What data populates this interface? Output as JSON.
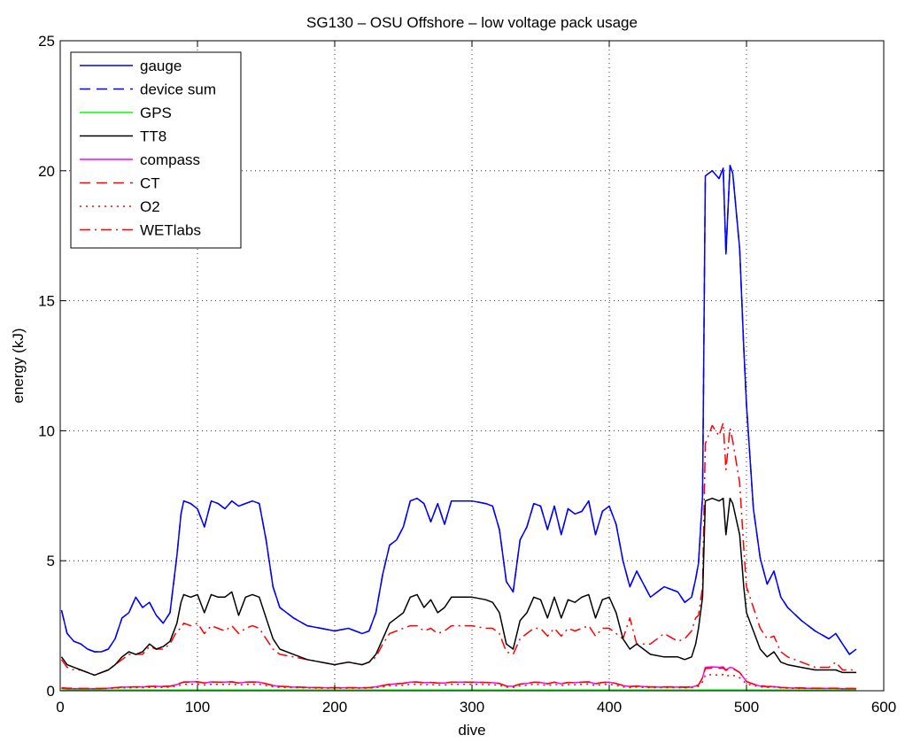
{
  "chart_data": {
    "type": "line",
    "title": "SG130 – OSU Offshore – low voltage pack usage",
    "xlabel": "dive",
    "ylabel": "energy (kJ)",
    "xlim": [
      0,
      600
    ],
    "ylim": [
      0,
      25
    ],
    "xticks": [
      0,
      100,
      200,
      300,
      400,
      500,
      600
    ],
    "yticks": [
      0,
      5,
      10,
      15,
      20,
      25
    ],
    "xtick_labels": [
      "0",
      "100",
      "200",
      "300",
      "400",
      "500",
      "600"
    ],
    "ytick_labels": [
      "0",
      "5",
      "10",
      "15",
      "20",
      "25"
    ],
    "grid": true,
    "legend_position": "top-left",
    "x": [
      1,
      5,
      10,
      15,
      20,
      25,
      30,
      35,
      40,
      45,
      50,
      55,
      60,
      65,
      70,
      75,
      80,
      85,
      88,
      90,
      95,
      100,
      105,
      110,
      115,
      120,
      125,
      130,
      135,
      140,
      145,
      150,
      155,
      160,
      170,
      180,
      190,
      200,
      210,
      220,
      225,
      230,
      235,
      240,
      245,
      250,
      255,
      260,
      265,
      270,
      275,
      280,
      285,
      290,
      300,
      310,
      315,
      320,
      325,
      330,
      335,
      340,
      345,
      350,
      355,
      360,
      365,
      370,
      375,
      380,
      385,
      390,
      395,
      400,
      405,
      410,
      415,
      420,
      430,
      440,
      450,
      455,
      460,
      463,
      465,
      468,
      470,
      475,
      480,
      483,
      485,
      488,
      490,
      495,
      498,
      500,
      505,
      510,
      515,
      520,
      525,
      530,
      540,
      550,
      560,
      565,
      570,
      575,
      580
    ],
    "series": [
      {
        "name": "gauge",
        "color": "#0000ff",
        "style": "solid",
        "values": [
          3.1,
          2.2,
          1.9,
          1.8,
          1.6,
          1.5,
          1.5,
          1.6,
          2.0,
          2.8,
          3.0,
          3.6,
          3.2,
          3.4,
          2.9,
          2.6,
          3.0,
          5.2,
          6.8,
          7.3,
          7.2,
          7.0,
          6.3,
          7.3,
          7.2,
          7.0,
          7.3,
          7.1,
          7.2,
          7.3,
          7.2,
          5.8,
          4.0,
          3.2,
          2.8,
          2.5,
          2.4,
          2.3,
          2.4,
          2.2,
          2.3,
          3.0,
          4.5,
          5.6,
          5.8,
          6.3,
          7.3,
          7.4,
          7.2,
          6.5,
          7.2,
          6.4,
          7.3,
          7.3,
          7.3,
          7.2,
          7.1,
          6.2,
          4.2,
          3.8,
          5.8,
          6.3,
          7.2,
          7.1,
          6.2,
          7.1,
          6.0,
          7.0,
          6.8,
          6.9,
          7.3,
          6.0,
          6.9,
          7.1,
          6.4,
          5.0,
          4.0,
          4.6,
          3.6,
          4.0,
          3.8,
          3.4,
          3.6,
          4.3,
          4.9,
          7.5,
          19.8,
          20.0,
          19.7,
          20.1,
          16.8,
          20.2,
          19.9,
          17.0,
          13.2,
          11.0,
          7.0,
          5.1,
          4.1,
          4.6,
          3.6,
          3.2,
          2.7,
          2.3,
          2.0,
          2.2,
          1.8,
          1.4,
          1.6
        ]
      },
      {
        "name": "device sum",
        "color": "#0000ff",
        "style": "dashed",
        "values": [
          3.1,
          2.2,
          1.9,
          1.8,
          1.6,
          1.5,
          1.5,
          1.6,
          2.0,
          2.8,
          3.0,
          3.6,
          3.2,
          3.4,
          2.9,
          2.6,
          3.0,
          5.2,
          6.8,
          7.3,
          7.2,
          7.0,
          6.3,
          7.3,
          7.2,
          7.0,
          7.3,
          7.1,
          7.2,
          7.3,
          7.2,
          5.8,
          4.0,
          3.2,
          2.8,
          2.5,
          2.4,
          2.3,
          2.4,
          2.2,
          2.3,
          3.0,
          4.5,
          5.6,
          5.8,
          6.3,
          7.3,
          7.4,
          7.2,
          6.5,
          7.2,
          6.4,
          7.3,
          7.3,
          7.3,
          7.2,
          7.1,
          6.2,
          4.2,
          3.8,
          5.8,
          6.3,
          7.2,
          7.1,
          6.2,
          7.1,
          6.0,
          7.0,
          6.8,
          6.9,
          7.3,
          6.0,
          6.9,
          7.1,
          6.4,
          5.0,
          4.0,
          4.6,
          3.6,
          4.0,
          3.8,
          3.4,
          3.6,
          4.3,
          4.9,
          7.5,
          19.8,
          20.0,
          19.7,
          20.1,
          16.8,
          20.2,
          19.9,
          17.0,
          13.2,
          11.0,
          7.0,
          5.1,
          4.1,
          4.6,
          3.6,
          3.2,
          2.7,
          2.3,
          2.0,
          2.2,
          1.8,
          1.4,
          1.6
        ]
      },
      {
        "name": "GPS",
        "color": "#00ff00",
        "style": "solid",
        "values": [
          0.03,
          0.03,
          0.03,
          0.03,
          0.03,
          0.03,
          0.03,
          0.03,
          0.03,
          0.03,
          0.03,
          0.03,
          0.03,
          0.03,
          0.03,
          0.03,
          0.03,
          0.03,
          0.03,
          0.03,
          0.03,
          0.03,
          0.03,
          0.03,
          0.03,
          0.03,
          0.03,
          0.03,
          0.03,
          0.03,
          0.03,
          0.03,
          0.03,
          0.03,
          0.03,
          0.03,
          0.03,
          0.03,
          0.03,
          0.03,
          0.03,
          0.03,
          0.03,
          0.03,
          0.03,
          0.03,
          0.03,
          0.03,
          0.03,
          0.03,
          0.03,
          0.03,
          0.03,
          0.03,
          0.03,
          0.03,
          0.03,
          0.03,
          0.03,
          0.03,
          0.03,
          0.03,
          0.03,
          0.03,
          0.03,
          0.03,
          0.03,
          0.03,
          0.03,
          0.03,
          0.03,
          0.03,
          0.03,
          0.03,
          0.03,
          0.03,
          0.03,
          0.03,
          0.03,
          0.03,
          0.03,
          0.03,
          0.03,
          0.03,
          0.03,
          0.03,
          0.03,
          0.03,
          0.03,
          0.03,
          0.03,
          0.03,
          0.03,
          0.03,
          0.03,
          0.03,
          0.03,
          0.03,
          0.03,
          0.03,
          0.03,
          0.03,
          0.03,
          0.03,
          0.03,
          0.03,
          0.03,
          0.03,
          0.03
        ]
      },
      {
        "name": "TT8",
        "color": "#000000",
        "style": "solid",
        "values": [
          1.3,
          1.0,
          0.9,
          0.8,
          0.7,
          0.6,
          0.7,
          0.8,
          1.0,
          1.3,
          1.5,
          1.4,
          1.5,
          1.8,
          1.6,
          1.7,
          1.9,
          2.6,
          3.4,
          3.7,
          3.6,
          3.7,
          3.0,
          3.7,
          3.6,
          3.6,
          3.8,
          2.9,
          3.6,
          3.7,
          3.6,
          2.8,
          2.0,
          1.6,
          1.4,
          1.2,
          1.1,
          1.0,
          1.1,
          1.0,
          1.1,
          1.4,
          2.0,
          2.6,
          2.8,
          3.0,
          3.6,
          3.7,
          3.2,
          3.5,
          3.0,
          3.2,
          3.6,
          3.6,
          3.6,
          3.5,
          3.4,
          3.0,
          1.8,
          1.6,
          2.7,
          3.0,
          3.6,
          3.5,
          2.8,
          3.6,
          2.8,
          3.5,
          3.4,
          3.6,
          3.7,
          2.8,
          3.5,
          3.6,
          3.0,
          2.0,
          1.6,
          1.8,
          1.4,
          1.3,
          1.3,
          1.2,
          1.3,
          1.8,
          2.4,
          3.6,
          7.3,
          7.4,
          7.3,
          7.4,
          6.0,
          7.4,
          7.2,
          6.0,
          4.0,
          3.0,
          2.3,
          1.6,
          1.3,
          1.5,
          1.1,
          1.0,
          0.9,
          0.8,
          0.8,
          0.8,
          0.7,
          0.7,
          0.7
        ]
      },
      {
        "name": "compass",
        "color": "#ff00ff",
        "style": "solid",
        "values": [
          0.1,
          0.08,
          0.08,
          0.08,
          0.08,
          0.08,
          0.08,
          0.1,
          0.12,
          0.14,
          0.14,
          0.15,
          0.15,
          0.16,
          0.17,
          0.16,
          0.17,
          0.24,
          0.3,
          0.34,
          0.34,
          0.35,
          0.3,
          0.34,
          0.33,
          0.33,
          0.35,
          0.3,
          0.33,
          0.34,
          0.33,
          0.27,
          0.2,
          0.17,
          0.14,
          0.13,
          0.12,
          0.11,
          0.12,
          0.11,
          0.12,
          0.15,
          0.2,
          0.25,
          0.27,
          0.29,
          0.33,
          0.34,
          0.31,
          0.32,
          0.3,
          0.3,
          0.33,
          0.33,
          0.33,
          0.32,
          0.31,
          0.28,
          0.18,
          0.17,
          0.26,
          0.28,
          0.33,
          0.32,
          0.27,
          0.33,
          0.27,
          0.32,
          0.31,
          0.33,
          0.34,
          0.27,
          0.32,
          0.33,
          0.28,
          0.2,
          0.16,
          0.18,
          0.14,
          0.14,
          0.14,
          0.13,
          0.14,
          0.18,
          0.22,
          0.5,
          0.9,
          0.92,
          0.9,
          0.92,
          0.8,
          0.9,
          0.88,
          0.7,
          0.5,
          0.35,
          0.25,
          0.18,
          0.15,
          0.16,
          0.12,
          0.11,
          0.1,
          0.09,
          0.09,
          0.09,
          0.08,
          0.08,
          0.08
        ]
      },
      {
        "name": "CT",
        "color": "#ff0000",
        "style": "dashed",
        "values": [
          0.12,
          0.1,
          0.1,
          0.09,
          0.09,
          0.09,
          0.09,
          0.1,
          0.12,
          0.14,
          0.14,
          0.15,
          0.15,
          0.17,
          0.17,
          0.17,
          0.18,
          0.24,
          0.3,
          0.33,
          0.33,
          0.34,
          0.3,
          0.33,
          0.33,
          0.32,
          0.34,
          0.3,
          0.33,
          0.33,
          0.33,
          0.27,
          0.2,
          0.17,
          0.15,
          0.13,
          0.12,
          0.12,
          0.12,
          0.12,
          0.12,
          0.15,
          0.2,
          0.25,
          0.27,
          0.28,
          0.33,
          0.33,
          0.31,
          0.32,
          0.3,
          0.3,
          0.33,
          0.33,
          0.33,
          0.32,
          0.31,
          0.28,
          0.18,
          0.17,
          0.26,
          0.28,
          0.33,
          0.32,
          0.27,
          0.33,
          0.27,
          0.32,
          0.31,
          0.33,
          0.34,
          0.27,
          0.32,
          0.33,
          0.28,
          0.2,
          0.16,
          0.18,
          0.15,
          0.15,
          0.15,
          0.14,
          0.15,
          0.18,
          0.22,
          0.5,
          0.85,
          0.88,
          0.86,
          0.88,
          0.78,
          0.87,
          0.85,
          0.7,
          0.5,
          0.36,
          0.26,
          0.2,
          0.16,
          0.17,
          0.13,
          0.12,
          0.11,
          0.1,
          0.1,
          0.1,
          0.09,
          0.09,
          0.09
        ]
      },
      {
        "name": "O2",
        "color": "#ff0000",
        "style": "dotted",
        "values": [
          0.1,
          0.08,
          0.08,
          0.08,
          0.08,
          0.08,
          0.08,
          0.09,
          0.1,
          0.11,
          0.11,
          0.12,
          0.12,
          0.13,
          0.13,
          0.13,
          0.14,
          0.18,
          0.22,
          0.25,
          0.25,
          0.26,
          0.22,
          0.25,
          0.25,
          0.24,
          0.26,
          0.22,
          0.25,
          0.25,
          0.25,
          0.2,
          0.15,
          0.13,
          0.12,
          0.11,
          0.1,
          0.1,
          0.1,
          0.1,
          0.1,
          0.12,
          0.15,
          0.19,
          0.2,
          0.21,
          0.25,
          0.25,
          0.23,
          0.24,
          0.22,
          0.22,
          0.25,
          0.25,
          0.25,
          0.24,
          0.23,
          0.21,
          0.14,
          0.13,
          0.19,
          0.21,
          0.25,
          0.24,
          0.2,
          0.25,
          0.2,
          0.24,
          0.23,
          0.25,
          0.26,
          0.2,
          0.24,
          0.25,
          0.21,
          0.15,
          0.12,
          0.14,
          0.12,
          0.12,
          0.12,
          0.11,
          0.12,
          0.14,
          0.17,
          0.35,
          0.6,
          0.62,
          0.6,
          0.62,
          0.55,
          0.61,
          0.6,
          0.5,
          0.36,
          0.26,
          0.2,
          0.15,
          0.13,
          0.14,
          0.11,
          0.1,
          0.09,
          0.09,
          0.09,
          0.09,
          0.08,
          0.08,
          0.08
        ]
      },
      {
        "name": "WETlabs",
        "color": "#ff0000",
        "style": "dashdot",
        "values": [
          1.2,
          0.9,
          0.8,
          0.8,
          0.7,
          0.6,
          0.7,
          0.8,
          1.0,
          1.2,
          1.4,
          1.4,
          1.4,
          1.7,
          1.6,
          1.6,
          1.8,
          2.3,
          2.4,
          2.6,
          2.5,
          2.6,
          2.2,
          2.5,
          2.4,
          2.3,
          2.5,
          2.2,
          2.4,
          2.5,
          2.4,
          2.0,
          1.6,
          1.4,
          1.3,
          1.2,
          1.1,
          1.0,
          1.1,
          1.0,
          1.1,
          1.3,
          1.8,
          2.2,
          2.3,
          2.4,
          2.5,
          2.5,
          2.3,
          2.4,
          2.2,
          2.3,
          2.5,
          2.5,
          2.5,
          2.4,
          2.4,
          2.2,
          1.5,
          1.4,
          2.0,
          2.2,
          2.4,
          2.4,
          2.1,
          2.4,
          2.1,
          2.4,
          2.3,
          2.4,
          2.5,
          2.1,
          2.4,
          2.4,
          2.2,
          2.0,
          2.8,
          1.8,
          1.8,
          2.2,
          1.9,
          2.0,
          2.3,
          2.8,
          2.9,
          4.0,
          9.5,
          10.2,
          9.8,
          10.3,
          8.5,
          10.1,
          9.6,
          8.0,
          5.5,
          4.0,
          3.2,
          2.4,
          2.0,
          2.1,
          1.5,
          1.3,
          1.1,
          0.9,
          0.9,
          1.1,
          0.8,
          0.8,
          0.8
        ]
      }
    ]
  }
}
